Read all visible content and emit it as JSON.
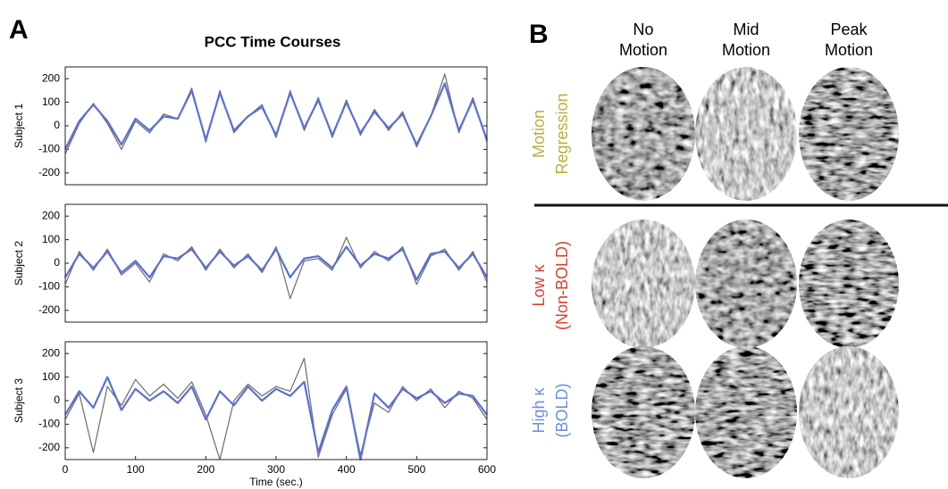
{
  "panel_a": {
    "label": "A",
    "title": "PCC Time Courses"
  },
  "chart_data": [
    {
      "type": "line",
      "y_label": "Subject 1",
      "xlim": [
        0,
        600
      ],
      "ylim": [
        -250,
        250
      ],
      "yticks": [
        -200,
        -100,
        0,
        100,
        200
      ],
      "x": [
        0,
        20,
        40,
        60,
        80,
        100,
        120,
        140,
        160,
        180,
        200,
        220,
        240,
        260,
        280,
        300,
        320,
        340,
        360,
        380,
        400,
        420,
        440,
        460,
        480,
        500,
        520,
        540,
        560,
        580,
        600
      ],
      "series": [
        {
          "color": "#6b6b6b",
          "values": [
            -120,
            10,
            95,
            10,
            -100,
            20,
            -30,
            50,
            30,
            160,
            -70,
            150,
            -30,
            40,
            90,
            -50,
            150,
            -20,
            120,
            -50,
            110,
            -40,
            70,
            -20,
            60,
            -90,
            40,
            220,
            -30,
            120,
            -70
          ]
        },
        {
          "color": "#5a6fd8",
          "values": [
            -100,
            20,
            90,
            20,
            -80,
            30,
            -20,
            40,
            30,
            150,
            -60,
            140,
            -20,
            40,
            80,
            -40,
            140,
            -10,
            110,
            -40,
            100,
            -30,
            60,
            -10,
            50,
            -80,
            40,
            180,
            -20,
            110,
            -60
          ]
        }
      ]
    },
    {
      "type": "line",
      "y_label": "Subject 2",
      "xlim": [
        0,
        600
      ],
      "ylim": [
        -250,
        250
      ],
      "yticks": [
        -200,
        -100,
        0,
        100,
        200
      ],
      "x": [
        0,
        20,
        40,
        60,
        80,
        100,
        120,
        140,
        160,
        180,
        200,
        220,
        240,
        260,
        280,
        300,
        320,
        340,
        360,
        380,
        400,
        420,
        440,
        460,
        480,
        500,
        520,
        540,
        560,
        580,
        600
      ],
      "series": [
        {
          "color": "#6b6b6b",
          "values": [
            -90,
            50,
            -30,
            60,
            -50,
            0,
            -80,
            40,
            10,
            70,
            -30,
            60,
            -20,
            40,
            -40,
            70,
            -150,
            10,
            20,
            -30,
            110,
            -20,
            50,
            10,
            70,
            -90,
            30,
            60,
            -30,
            50,
            -80
          ]
        },
        {
          "color": "#5a6fd8",
          "values": [
            -60,
            40,
            -20,
            50,
            -40,
            10,
            -60,
            30,
            20,
            60,
            -20,
            50,
            -10,
            30,
            -30,
            60,
            -60,
            20,
            30,
            -20,
            70,
            -10,
            40,
            20,
            60,
            -70,
            40,
            50,
            -20,
            40,
            -60
          ]
        }
      ]
    },
    {
      "type": "line",
      "y_label": "Subject 3",
      "x_label": "Time (sec.)",
      "xlim": [
        0,
        600
      ],
      "xticks": [
        0,
        100,
        200,
        300,
        400,
        500,
        600
      ],
      "ylim": [
        -250,
        250
      ],
      "yticks": [
        -200,
        -100,
        0,
        100,
        200
      ],
      "x": [
        0,
        20,
        40,
        60,
        80,
        100,
        120,
        140,
        160,
        180,
        200,
        220,
        240,
        260,
        280,
        300,
        320,
        340,
        360,
        380,
        400,
        420,
        440,
        460,
        480,
        500,
        520,
        540,
        560,
        580,
        600
      ],
      "series": [
        {
          "color": "#6b6b6b",
          "values": [
            -80,
            30,
            -220,
            60,
            -20,
            90,
            20,
            70,
            10,
            80,
            -60,
            -250,
            0,
            70,
            20,
            60,
            40,
            180,
            -240,
            -60,
            50,
            -230,
            -10,
            -50,
            60,
            0,
            50,
            -30,
            40,
            10,
            -80
          ]
        },
        {
          "color": "#5a6fd8",
          "values": [
            -60,
            40,
            -30,
            100,
            -40,
            50,
            0,
            40,
            -10,
            60,
            -80,
            40,
            -20,
            60,
            0,
            50,
            20,
            80,
            -220,
            -40,
            60,
            -250,
            30,
            -30,
            50,
            10,
            40,
            -10,
            30,
            20,
            -60
          ]
        }
      ]
    }
  ],
  "panel_b": {
    "label": "B",
    "columns": [
      [
        "No",
        "Motion"
      ],
      [
        "Mid",
        "Motion"
      ],
      [
        "Peak",
        "Motion"
      ]
    ],
    "rows": [
      {
        "lines": [
          "Motion",
          "Regression"
        ],
        "color": "#b3b23a"
      },
      {
        "lines": [
          "Low κ",
          "(Non-BOLD)"
        ],
        "color": "#d9412e"
      },
      {
        "lines": [
          "High κ",
          "(BOLD)"
        ],
        "color": "#6a8fe6"
      }
    ]
  }
}
